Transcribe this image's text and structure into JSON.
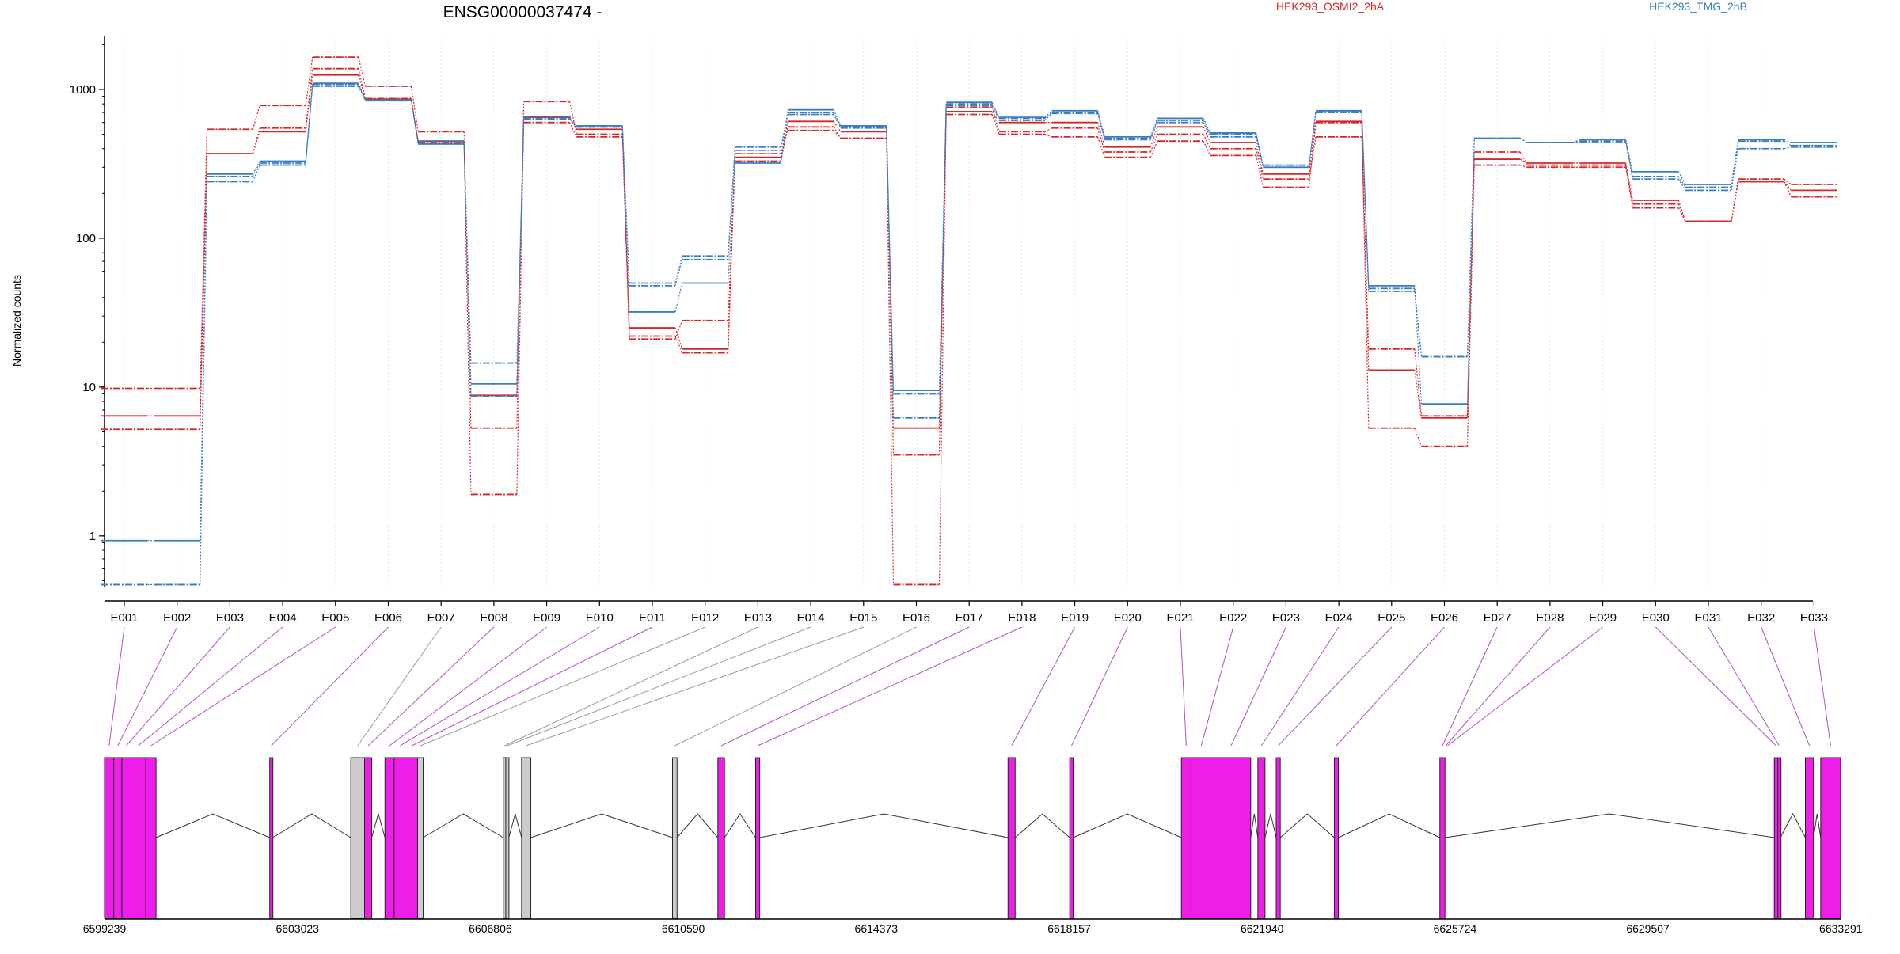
{
  "chart_data": {
    "type": "line",
    "title": "ENSG00000037474 -",
    "ylabel": "Normalized counts",
    "yscale": "log",
    "ylim": [
      0.45,
      2300
    ],
    "yticks": [
      1,
      10,
      100,
      1000
    ],
    "ytick_labels": [
      "1",
      "10",
      "100",
      "1000"
    ],
    "grid": "vertical-dotted",
    "legend": [
      {
        "name": "HEK293_OSMI2_2hA",
        "color": "#d62728",
        "position": "top-center"
      },
      {
        "name": "HEK293_TMG_2hB",
        "color": "#3a7dc1",
        "position": "top-right"
      }
    ],
    "categories": [
      "E001",
      "E002",
      "E003",
      "E004",
      "E005",
      "E006",
      "E007",
      "E008",
      "E009",
      "E010",
      "E011",
      "E012",
      "E013",
      "E014",
      "E015",
      "E016",
      "E017",
      "E018",
      "E019",
      "E020",
      "E021",
      "E022",
      "E023",
      "E024",
      "E025",
      "E026",
      "E027",
      "E028",
      "E029",
      "E030",
      "E031",
      "E032",
      "E033"
    ],
    "series": [
      {
        "group": "HEK293_OSMI2_2hA",
        "color": "#d62728",
        "style": "solid",
        "values": [
          6.4,
          6.4,
          370,
          520,
          1250,
          860,
          450,
          8.8,
          650,
          540,
          25,
          18,
          350,
          610,
          520,
          5.3,
          710,
          600,
          600,
          410,
          560,
          440,
          270,
          610,
          13,
          6.2,
          340,
          320,
          320,
          180,
          130,
          240,
          210
        ]
      },
      {
        "group": "HEK293_OSMI2_2hA",
        "color": "#d62728",
        "style": "dashed",
        "values": [
          9.8,
          9.8,
          540,
          780,
          1650,
          1050,
          520,
          5.3,
          830,
          500,
          21,
          28,
          330,
          560,
          470,
          3.5,
          760,
          520,
          550,
          380,
          500,
          400,
          250,
          480,
          18,
          6.4,
          380,
          310,
          310,
          160,
          130,
          250,
          230
        ]
      },
      {
        "group": "HEK293_OSMI2_2hA",
        "color": "#d62728",
        "style": "dashed",
        "values": [
          5.2,
          5.2,
          370,
          550,
          1380,
          870,
          440,
          1.9,
          600,
          480,
          22,
          17,
          370,
          530,
          470,
          0.47,
          680,
          500,
          480,
          350,
          450,
          360,
          220,
          600,
          5.3,
          4.0,
          310,
          300,
          300,
          170,
          130,
          240,
          190
        ]
      },
      {
        "group": "HEK293_TMG_2hB",
        "color": "#3a7dc1",
        "style": "solid",
        "values": [
          0.93,
          0.93,
          270,
          330,
          1100,
          850,
          430,
          10.5,
          660,
          570,
          32,
          50,
          320,
          730,
          570,
          9.5,
          820,
          650,
          720,
          480,
          640,
          510,
          300,
          720,
          48,
          7.7,
          470,
          440,
          460,
          280,
          230,
          460,
          440
        ]
      },
      {
        "group": "HEK293_TMG_2hB",
        "color": "#3a7dc1",
        "style": "dashed",
        "values": [
          0.47,
          0.47,
          240,
          310,
          1050,
          840,
          450,
          14.5,
          630,
          560,
          48,
          72,
          410,
          680,
          550,
          6.2,
          800,
          640,
          700,
          470,
          620,
          500,
          310,
          710,
          44,
          16,
          470,
          440,
          450,
          260,
          220,
          450,
          420
        ]
      },
      {
        "group": "HEK293_TMG_2hB",
        "color": "#3a7dc1",
        "style": "dashed",
        "values": [
          0.47,
          0.47,
          260,
          320,
          1080,
          850,
          430,
          8.7,
          640,
          560,
          50,
          76,
          390,
          700,
          560,
          9.0,
          780,
          620,
          690,
          460,
          600,
          480,
          300,
          700,
          46,
          16,
          470,
          440,
          440,
          250,
          210,
          400,
          410
        ]
      }
    ],
    "gene_model": {
      "coordinate_labels": [
        "6599239",
        "6603023",
        "6606806",
        "6610590",
        "6614373",
        "6618157",
        "6621940",
        "6625724",
        "6629507",
        "6633291"
      ],
      "range": [
        6599239,
        6633291
      ],
      "fill_colors": {
        "tested": "#ee1ee8",
        "not_tested": "#cccccc"
      },
      "exons": [
        {
          "start": 6599239,
          "end": 6599420,
          "tested": true
        },
        {
          "start": 6599420,
          "end": 6599580,
          "tested": true
        },
        {
          "start": 6599580,
          "end": 6600050,
          "tested": true
        },
        {
          "start": 6600050,
          "end": 6600250,
          "tested": true
        },
        {
          "start": 6602480,
          "end": 6602540,
          "tested": true
        },
        {
          "start": 6604070,
          "end": 6604340,
          "tested": false
        },
        {
          "start": 6604340,
          "end": 6604480,
          "tested": true
        },
        {
          "start": 6604740,
          "end": 6604920,
          "tested": true
        },
        {
          "start": 6604920,
          "end": 6605380,
          "tested": true
        },
        {
          "start": 6605380,
          "end": 6605490,
          "tested": false
        },
        {
          "start": 6607060,
          "end": 6607110,
          "tested": false
        },
        {
          "start": 6607110,
          "end": 6607170,
          "tested": false
        },
        {
          "start": 6607420,
          "end": 6607600,
          "tested": false
        },
        {
          "start": 6610380,
          "end": 6610470,
          "tested": false
        },
        {
          "start": 6611270,
          "end": 6611400,
          "tested": true
        },
        {
          "start": 6612010,
          "end": 6612090,
          "tested": true
        },
        {
          "start": 6616960,
          "end": 6617100,
          "tested": true
        },
        {
          "start": 6618170,
          "end": 6618240,
          "tested": true
        },
        {
          "start": 6620360,
          "end": 6620550,
          "tested": true
        },
        {
          "start": 6620550,
          "end": 6621720,
          "tested": true
        },
        {
          "start": 6621860,
          "end": 6622000,
          "tested": true
        },
        {
          "start": 6622220,
          "end": 6622300,
          "tested": true
        },
        {
          "start": 6623360,
          "end": 6623440,
          "tested": true
        },
        {
          "start": 6625430,
          "end": 6625530,
          "tested": true
        },
        {
          "start": 6631990,
          "end": 6632060,
          "tested": true
        },
        {
          "start": 6632060,
          "end": 6632110,
          "tested": true
        },
        {
          "start": 6632600,
          "end": 6632760,
          "tested": true
        },
        {
          "start": 6632900,
          "end": 6633291,
          "tested": true
        }
      ],
      "category_map": [
        {
          "exon": "E001",
          "start": 6599239,
          "end": 6599420,
          "tested": true
        },
        {
          "exon": "E002",
          "start": 6599420,
          "end": 6599580,
          "tested": true
        },
        {
          "exon": "E003",
          "start": 6599580,
          "end": 6599750,
          "tested": true
        },
        {
          "exon": "E004",
          "start": 6599750,
          "end": 6600050,
          "tested": true
        },
        {
          "exon": "E005",
          "start": 6600050,
          "end": 6600250,
          "tested": true
        },
        {
          "exon": "E006",
          "start": 6602480,
          "end": 6602540,
          "tested": true
        },
        {
          "exon": "E007",
          "start": 6604070,
          "end": 6604340,
          "tested": false
        },
        {
          "exon": "E008",
          "start": 6604340,
          "end": 6604480,
          "tested": true
        },
        {
          "exon": "E009",
          "start": 6604740,
          "end": 6604920,
          "tested": true
        },
        {
          "exon": "E010",
          "start": 6604920,
          "end": 6605150,
          "tested": true
        },
        {
          "exon": "E011",
          "start": 6605150,
          "end": 6605380,
          "tested": true
        },
        {
          "exon": "E012",
          "start": 6605380,
          "end": 6605490,
          "tested": false
        },
        {
          "exon": "E013",
          "start": 6607060,
          "end": 6607110,
          "tested": false
        },
        {
          "exon": "E014",
          "start": 6607110,
          "end": 6607170,
          "tested": false
        },
        {
          "exon": "E015",
          "start": 6607420,
          "end": 6607600,
          "tested": false
        },
        {
          "exon": "E016",
          "start": 6610380,
          "end": 6610470,
          "tested": false
        },
        {
          "exon": "E017",
          "start": 6611270,
          "end": 6611400,
          "tested": true
        },
        {
          "exon": "E018",
          "start": 6612010,
          "end": 6612090,
          "tested": true
        },
        {
          "exon": "E019",
          "start": 6616960,
          "end": 6617100,
          "tested": true
        },
        {
          "exon": "E020",
          "start": 6618170,
          "end": 6618240,
          "tested": true
        },
        {
          "exon": "E021",
          "start": 6620360,
          "end": 6620550,
          "tested": true
        },
        {
          "exon": "E022",
          "start": 6620550,
          "end": 6620950,
          "tested": true
        },
        {
          "exon": "E023",
          "start": 6620950,
          "end": 6621720,
          "tested": true
        },
        {
          "exon": "E024",
          "start": 6621860,
          "end": 6622000,
          "tested": true
        },
        {
          "exon": "E025",
          "start": 6622220,
          "end": 6622300,
          "tested": true
        },
        {
          "exon": "E026",
          "start": 6623360,
          "end": 6623440,
          "tested": true
        },
        {
          "exon": "E027",
          "start": 6625430,
          "end": 6625530,
          "tested": true
        },
        {
          "exon": "E028",
          "start": 6625530,
          "end": 6625560,
          "tested": true
        },
        {
          "exon": "E029",
          "start": 6625560,
          "end": 6625600,
          "tested": true
        },
        {
          "exon": "E030",
          "start": 6631990,
          "end": 6632060,
          "tested": true
        },
        {
          "exon": "E031",
          "start": 6632060,
          "end": 6632110,
          "tested": true
        },
        {
          "exon": "E032",
          "start": 6632600,
          "end": 6632760,
          "tested": true
        },
        {
          "exon": "E033",
          "start": 6632900,
          "end": 6633291,
          "tested": true
        }
      ]
    }
  }
}
